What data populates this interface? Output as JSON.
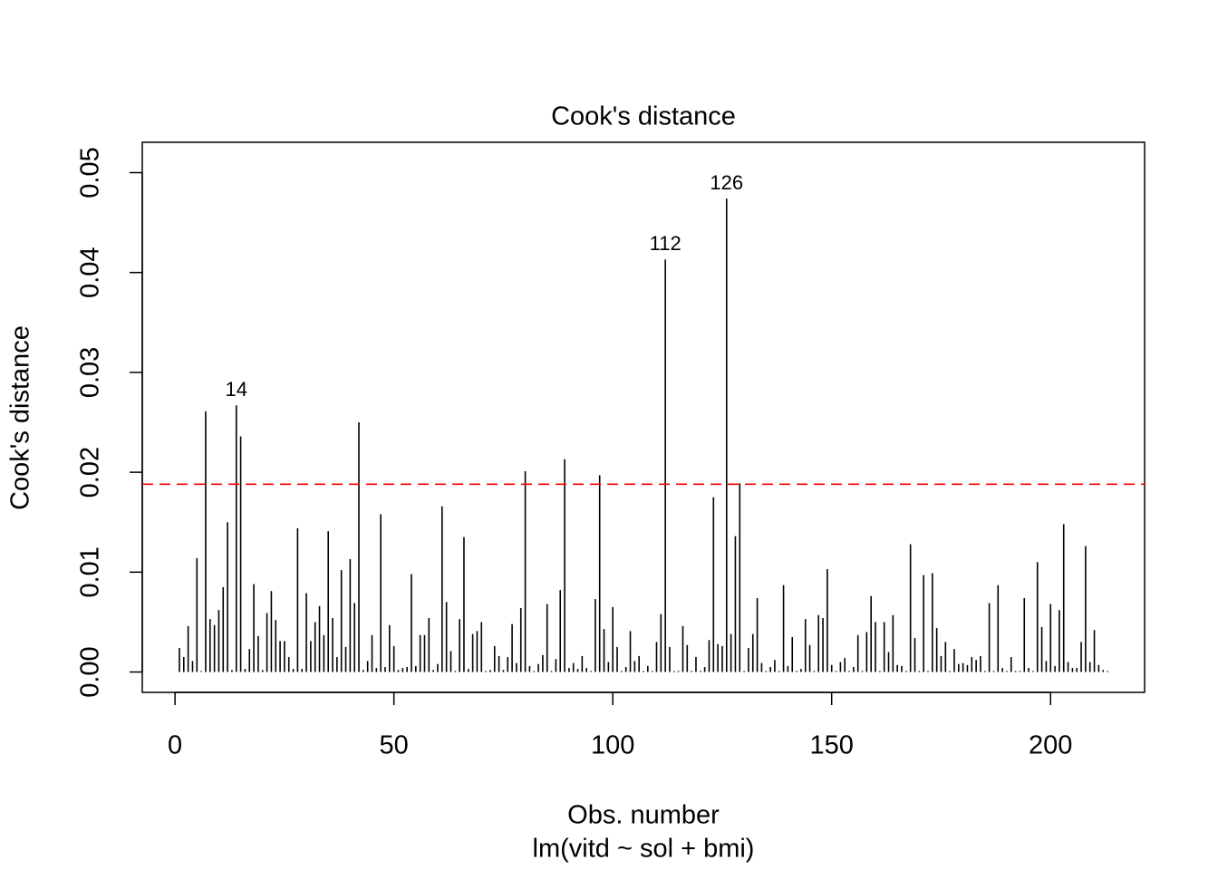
{
  "chart_data": {
    "type": "lollipop",
    "title": "Cook's distance",
    "xlabel": "Obs. number",
    "subtitle": "lm(vitd ~ sol + bmi)",
    "ylabel": "Cook's distance",
    "color": "#000000",
    "hline": 0.0188,
    "hline_color": "#ff0000",
    "xlim": [
      -7.48,
      221.48
    ],
    "ylim": [
      -0.00204,
      0.05304
    ],
    "xticks": [
      0,
      50,
      100,
      150,
      200
    ],
    "yticks": [
      {
        "value": 0,
        "label": "0.00"
      },
      {
        "value": 0.01,
        "label": "0.01"
      },
      {
        "value": 0.02,
        "label": "0.02"
      },
      {
        "value": 0.03,
        "label": "0.03"
      },
      {
        "value": 0.04,
        "label": "0.04"
      },
      {
        "value": 0.05,
        "label": "0.05"
      }
    ],
    "annotations": [
      {
        "text": "14",
        "x": 14
      },
      {
        "text": "112",
        "x": 112
      },
      {
        "text": "126",
        "x": 126
      }
    ],
    "x": [
      1,
      2,
      3,
      4,
      5,
      6,
      7,
      8,
      9,
      10,
      11,
      12,
      13,
      14,
      15,
      16,
      17,
      18,
      19,
      20,
      21,
      22,
      23,
      24,
      25,
      26,
      27,
      28,
      29,
      30,
      31,
      32,
      33,
      34,
      35,
      36,
      37,
      38,
      39,
      40,
      41,
      42,
      43,
      44,
      45,
      46,
      47,
      48,
      49,
      50,
      51,
      52,
      53,
      54,
      55,
      56,
      57,
      58,
      59,
      60,
      61,
      62,
      63,
      64,
      65,
      66,
      67,
      68,
      69,
      70,
      71,
      72,
      73,
      74,
      75,
      76,
      77,
      78,
      79,
      80,
      81,
      82,
      83,
      84,
      85,
      86,
      87,
      88,
      89,
      90,
      91,
      92,
      93,
      94,
      95,
      96,
      97,
      98,
      99,
      100,
      101,
      102,
      103,
      104,
      105,
      106,
      107,
      108,
      109,
      110,
      111,
      112,
      113,
      114,
      115,
      116,
      117,
      118,
      119,
      120,
      121,
      122,
      123,
      124,
      125,
      126,
      127,
      128,
      129,
      130,
      131,
      132,
      133,
      134,
      135,
      136,
      137,
      138,
      139,
      140,
      141,
      142,
      143,
      144,
      145,
      146,
      147,
      148,
      149,
      150,
      151,
      152,
      153,
      154,
      155,
      156,
      157,
      158,
      159,
      160,
      161,
      162,
      163,
      164,
      165,
      166,
      167,
      168,
      169,
      170,
      171,
      172,
      173,
      174,
      175,
      176,
      177,
      178,
      179,
      180,
      181,
      182,
      183,
      184,
      185,
      186,
      187,
      188,
      189,
      190,
      191,
      192,
      193,
      194,
      195,
      196,
      197,
      198,
      199,
      200,
      201,
      202,
      203,
      204,
      205,
      206,
      207,
      208,
      209,
      210,
      211,
      212,
      213
    ],
    "values": [
      0.0024,
      0.0015,
      0.0046,
      0.0011,
      0.0114,
      0.0001,
      0.0261,
      0.0053,
      0.0047,
      0.0062,
      0.0085,
      0.015,
      0.0002,
      0.0267,
      0.0236,
      0.0003,
      0.0023,
      0.0088,
      0.0036,
      0.0002,
      0.0059,
      0.0081,
      0.0052,
      0.0031,
      0.0031,
      0.0015,
      0.0003,
      0.0144,
      0.0003,
      0.0079,
      0.0031,
      0.005,
      0.0066,
      0.0037,
      0.0141,
      0.0054,
      0.0015,
      0.0102,
      0.0025,
      0.0113,
      0.0069,
      0.025,
      0.0002,
      0.0011,
      0.0037,
      0.0004,
      0.0158,
      0.0005,
      0.0047,
      0.0026,
      0.0002,
      0.0004,
      0.0005,
      0.0098,
      0.0006,
      0.0037,
      0.0037,
      0.0054,
      0.0002,
      0.0008,
      0.0166,
      0.007,
      0.0021,
      0.0001,
      0.0053,
      0.0135,
      0.0003,
      0.0038,
      0.0041,
      0.005,
      0.0001,
      0.0002,
      0.0026,
      0.0016,
      0.0002,
      0.0015,
      0.0048,
      0.0009,
      0.0064,
      0.0201,
      0.0006,
      0.0001,
      0.0008,
      0.0017,
      0.0068,
      0.0001,
      0.0013,
      0.0082,
      0.0213,
      0.0004,
      0.0009,
      0.0003,
      0.0016,
      0.0004,
      0.0001,
      0.0073,
      0.0197,
      0.0043,
      0.001,
      0.0065,
      0.0025,
      0.0001,
      0.0005,
      0.0041,
      0.0011,
      0.0016,
      0.0001,
      0.0006,
      0.0001,
      0.003,
      0.0058,
      0.0413,
      0.0025,
      0.0001,
      0.0001,
      0.0046,
      0.0027,
      0.0001,
      0.0015,
      0.0001,
      0.0005,
      0.0032,
      0.0175,
      0.0028,
      0.0026,
      0.0474,
      0.0038,
      0.0136,
      0.0189,
      0.0001,
      0.0024,
      0.0038,
      0.0074,
      0.0009,
      0.0001,
      0.0005,
      0.0012,
      0.0001,
      0.0087,
      0.0006,
      0.0035,
      0.0001,
      0.0003,
      0.0053,
      0.0027,
      0.0001,
      0.0057,
      0.0054,
      0.0103,
      0.0007,
      0.0001,
      0.001,
      0.0014,
      0.0001,
      0.0005,
      0.0037,
      0.0001,
      0.004,
      0.0076,
      0.005,
      0.0001,
      0.005,
      0.002,
      0.0057,
      0.0007,
      0.0006,
      0.0001,
      0.0128,
      0.0034,
      0.0001,
      0.0097,
      0.0001,
      0.0099,
      0.0044,
      0.0016,
      0.003,
      0.0001,
      0.0023,
      0.0008,
      0.0009,
      0.0007,
      0.0015,
      0.0012,
      0.0016,
      0.0001,
      0.0069,
      0.0001,
      0.0087,
      0.0004,
      0.0001,
      0.0015,
      0.0001,
      0.0001,
      0.0074,
      0.0004,
      0.0001,
      0.011,
      0.0045,
      0.0011,
      0.0068,
      0.0006,
      0.0062,
      0.0148,
      0.001,
      0.0004,
      0.0004,
      0.003,
      0.0126,
      0.001,
      0.0042,
      0.0007,
      0.0002,
      0.0001
    ]
  }
}
